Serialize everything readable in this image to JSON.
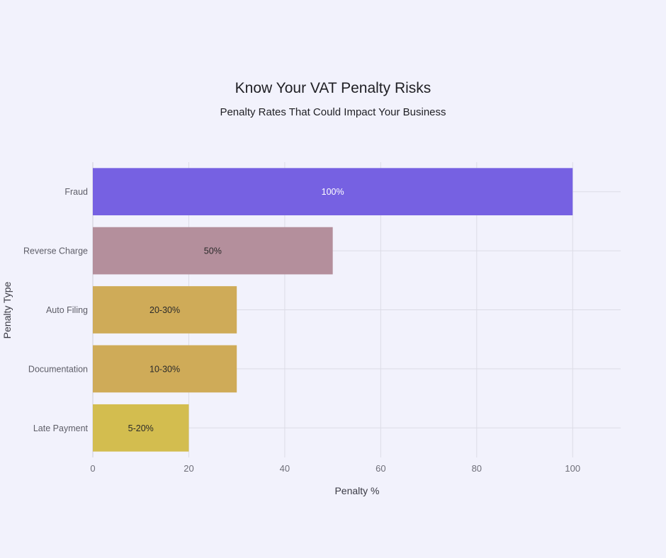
{
  "chart_data": {
    "type": "bar",
    "orientation": "horizontal",
    "title": "Know Your VAT Penalty Risks",
    "subtitle": "Penalty Rates That Could Impact Your Business",
    "xlabel": "Penalty %",
    "ylabel": "Penalty Type",
    "xlim": [
      0,
      110
    ],
    "xticks": [
      0,
      20,
      40,
      60,
      80,
      100
    ],
    "grid": true,
    "legend": "none",
    "categories": [
      "Fraud",
      "Reverse Charge",
      "Auto Filing",
      "Documentation",
      "Late Payment"
    ],
    "values": [
      100,
      50,
      30,
      30,
      20
    ],
    "data_labels": [
      "100%",
      "50%",
      "20-30%",
      "10-30%",
      "5-20%"
    ],
    "colors": [
      "#7661e2",
      "#b48f9c",
      "#cfab58",
      "#cfab58",
      "#d3bd4f"
    ]
  }
}
